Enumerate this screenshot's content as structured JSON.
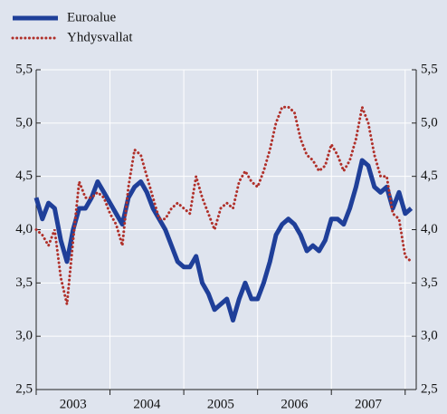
{
  "chart_data": {
    "type": "line",
    "x": [
      2003.0,
      2003.083,
      2003.167,
      2003.25,
      2003.333,
      2003.417,
      2003.5,
      2003.583,
      2003.667,
      2003.75,
      2003.833,
      2003.917,
      2004.0,
      2004.083,
      2004.167,
      2004.25,
      2004.333,
      2004.417,
      2004.5,
      2004.583,
      2004.667,
      2004.75,
      2004.833,
      2004.917,
      2005.0,
      2005.083,
      2005.167,
      2005.25,
      2005.333,
      2005.417,
      2005.5,
      2005.583,
      2005.667,
      2005.75,
      2005.833,
      2005.917,
      2006.0,
      2006.083,
      2006.167,
      2006.25,
      2006.333,
      2006.417,
      2006.5,
      2006.583,
      2006.667,
      2006.75,
      2006.833,
      2006.917,
      2007.0,
      2007.083,
      2007.167,
      2007.25,
      2007.333,
      2007.417,
      2007.5,
      2007.583,
      2007.667,
      2007.75,
      2007.833,
      2007.917,
      2008.0,
      2008.083
    ],
    "series": [
      {
        "name": "Euroalue",
        "color": "#1f3f99",
        "style": "solid",
        "values": [
          4.3,
          4.1,
          4.25,
          4.2,
          3.9,
          3.7,
          4.0,
          4.2,
          4.2,
          4.3,
          4.45,
          4.35,
          4.25,
          4.15,
          4.05,
          4.3,
          4.4,
          4.45,
          4.35,
          4.2,
          4.1,
          4.0,
          3.85,
          3.7,
          3.65,
          3.65,
          3.75,
          3.5,
          3.4,
          3.25,
          3.3,
          3.35,
          3.15,
          3.35,
          3.5,
          3.35,
          3.35,
          3.5,
          3.7,
          3.95,
          4.05,
          4.1,
          4.05,
          3.95,
          3.8,
          3.85,
          3.8,
          3.9,
          4.1,
          4.1,
          4.05,
          4.2,
          4.4,
          4.65,
          4.6,
          4.4,
          4.35,
          4.4,
          4.2,
          4.35,
          4.15,
          4.2
        ]
      },
      {
        "name": "Yhdysvallat",
        "color": "#b0302a",
        "style": "dotted",
        "values": [
          4.0,
          3.95,
          3.85,
          4.0,
          3.55,
          3.3,
          3.9,
          4.45,
          4.3,
          4.3,
          4.35,
          4.3,
          4.15,
          4.05,
          3.85,
          4.4,
          4.75,
          4.7,
          4.5,
          4.3,
          4.1,
          4.1,
          4.2,
          4.25,
          4.2,
          4.15,
          4.5,
          4.3,
          4.15,
          4.0,
          4.2,
          4.25,
          4.2,
          4.45,
          4.55,
          4.45,
          4.4,
          4.55,
          4.75,
          5.0,
          5.15,
          5.15,
          5.1,
          4.85,
          4.7,
          4.65,
          4.55,
          4.6,
          4.8,
          4.7,
          4.55,
          4.65,
          4.85,
          5.15,
          5.0,
          4.7,
          4.5,
          4.5,
          4.15,
          4.1,
          3.75,
          3.7
        ]
      }
    ],
    "xlim": [
      2003,
      2008.15
    ],
    "xticks": [
      2003,
      2004,
      2005,
      2006,
      2007,
      2008
    ],
    "year_labels": [
      "2003",
      "2004",
      "2005",
      "2006",
      "2007"
    ],
    "ylim": [
      2.5,
      5.5
    ],
    "yticks": [
      {
        "value": 2.5,
        "label": "2,5"
      },
      {
        "value": 3.0,
        "label": "3,0"
      },
      {
        "value": 3.5,
        "label": "3,5"
      },
      {
        "value": 4.0,
        "label": "4,0"
      },
      {
        "value": 4.5,
        "label": "4,5"
      },
      {
        "value": 5.0,
        "label": "5,0"
      },
      {
        "value": 5.5,
        "label": "5,5"
      }
    ],
    "grid": true,
    "legend": "top-left"
  }
}
